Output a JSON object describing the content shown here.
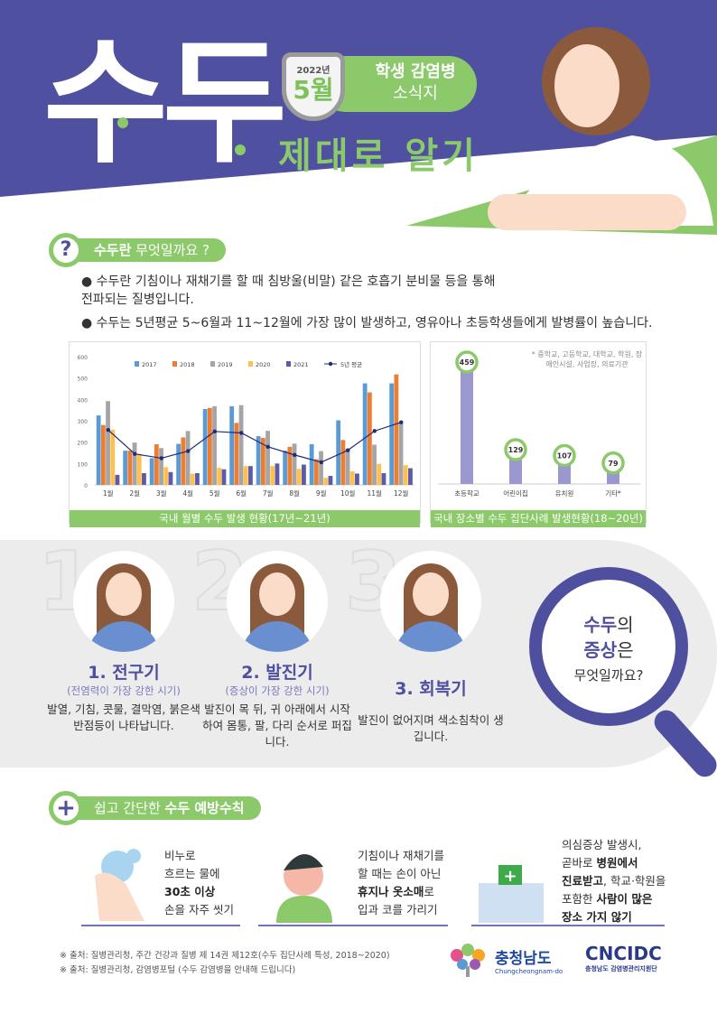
{
  "hero": {
    "title": "수두",
    "badge_year": "2022년",
    "badge_month": "5월",
    "pill_line1": "학생 감염병",
    "pill_line2": "소식지",
    "subtitle": "제대로 알기"
  },
  "colors": {
    "purple": "#4f4f9f",
    "green": "#8cc96a"
  },
  "what": {
    "icon": "question-icon",
    "head_bold": "수두란",
    "head_rest": " 무엇일까요 ?",
    "bullets": [
      "수두란 기침이나 재채기를 할 때 침방울(비말) 같은 호흡기 분비물 등을 통해 전파되는 질병입니다.",
      "수두는 5년평균 5~6월과 11~12월에 가장 많이 발생하고, 영유아나 초등학생들에게 발병률이 높습니다."
    ]
  },
  "chart_data": [
    {
      "type": "bar",
      "title": "국내 월별 수두 발생 현황(17년~21년)",
      "categories": [
        "1월",
        "2월",
        "3월",
        "4월",
        "5월",
        "6월",
        "7월",
        "8월",
        "9월",
        "10월",
        "11월",
        "12월"
      ],
      "ylim": [
        0,
        600
      ],
      "yticks": [
        "0",
        "100",
        "200",
        "300",
        "400",
        "500",
        "600"
      ],
      "legend": "top",
      "grid": false,
      "series": [
        {
          "name": "2017",
          "color": "#5b9bd5",
          "values": [
            325,
            160,
            125,
            192,
            355,
            368,
            228,
            160,
            190,
            302,
            475,
            475
          ]
        },
        {
          "name": "2018",
          "color": "#ed7d31",
          "values": [
            280,
            160,
            190,
            222,
            360,
            290,
            220,
            178,
            120,
            210,
            433,
            517
          ]
        },
        {
          "name": "2019",
          "color": "#a5a5a5",
          "values": [
            392,
            198,
            172,
            252,
            368,
            373,
            253,
            193,
            158,
            170,
            188,
            290
          ]
        },
        {
          "name": "2020",
          "color": "#ffc04f",
          "values": [
            258,
            145,
            83,
            52,
            80,
            88,
            88,
            75,
            33,
            63,
            98,
            92
          ]
        },
        {
          "name": "2021",
          "color": "#5b5ba8",
          "values": [
            47,
            55,
            60,
            55,
            73,
            88,
            100,
            95,
            42,
            53,
            55,
            78
          ]
        },
        {
          "name": "5년 평균",
          "type": "line",
          "color": "#1f2a7a",
          "values": [
            257,
            145,
            125,
            158,
            250,
            243,
            178,
            140,
            106,
            162,
            252,
            293
          ]
        }
      ]
    },
    {
      "type": "bar",
      "title": "국내 장소별 수두 집단사례 발생현황(18~20년)",
      "categories": [
        "초등학교",
        "어린이집",
        "유치원",
        "기타*"
      ],
      "values": [
        459,
        129,
        107,
        79
      ],
      "color": "#9b97cf",
      "note": "* 중학교, 고등학교, 대학교, 학원, 장애인시설, 사업장, 의료기관"
    }
  ],
  "symptoms": {
    "title_bold1": "수두",
    "title_rest1": "의",
    "title_bold2": "증상",
    "title_rest2": "은",
    "title_line3": "무엇일까요?",
    "stages": [
      {
        "num": "1",
        "title": "1. 전구기",
        "sub": "(전염력이 가장 강한 시기)",
        "desc": "발열, 기침, 콧물, 결막염, 붉은색 반점등이 나타납니다."
      },
      {
        "num": "2",
        "title": "2. 발진기",
        "sub": "(증상이 가장 강한 시기)",
        "desc": "발진이 목 뒤, 귀 아래에서 시작하여 몸통, 팔, 다리 순서로 퍼집니다."
      },
      {
        "num": "3",
        "title": "3. 회복기",
        "sub": "",
        "desc": "발진이 없어지며 색소침착이 생깁니다."
      }
    ]
  },
  "prevention": {
    "head_rest": "쉽고 간단한 ",
    "head_bold": "수두 예방수칙",
    "items": [
      {
        "icon": "hand-wash-icon",
        "l1": "비누로",
        "l2": "흐르는 물에",
        "l3b": "30초 이상",
        "l4": "손을 자주 씻기"
      },
      {
        "icon": "cough-icon",
        "l1": "기침이나 재채기를",
        "l2": "할 때는 손이 아닌",
        "l3b": "휴지나 옷소매",
        "l3r": "로",
        "l4": "입과 코를 가리기"
      },
      {
        "icon": "hospital-icon",
        "l1": "의심증상 발생시,",
        "l2r": "곧바로 ",
        "l2b": "병원에서",
        "l3b": "진료받고",
        "l3r": ", 학교·학원을",
        "l4r": "포함한 ",
        "l4b": "사람이 많은",
        "l5b": "장소 가지 않기"
      }
    ]
  },
  "sources": [
    "※ 출처: 질병관리청, 주간 건강과 질병 제 14권 제12호(수두 집단사례 특성, 2018~2020)",
    "※ 출처: 질병관리청, 감염병포털 (수두 감염병을 안내해 드립니다)"
  ],
  "logos": {
    "province": "충청남도",
    "province_en": "Chungcheongnam-do",
    "cdc": "CNCIDC",
    "cdc_sub": "충청남도 감염병관리지원단"
  }
}
